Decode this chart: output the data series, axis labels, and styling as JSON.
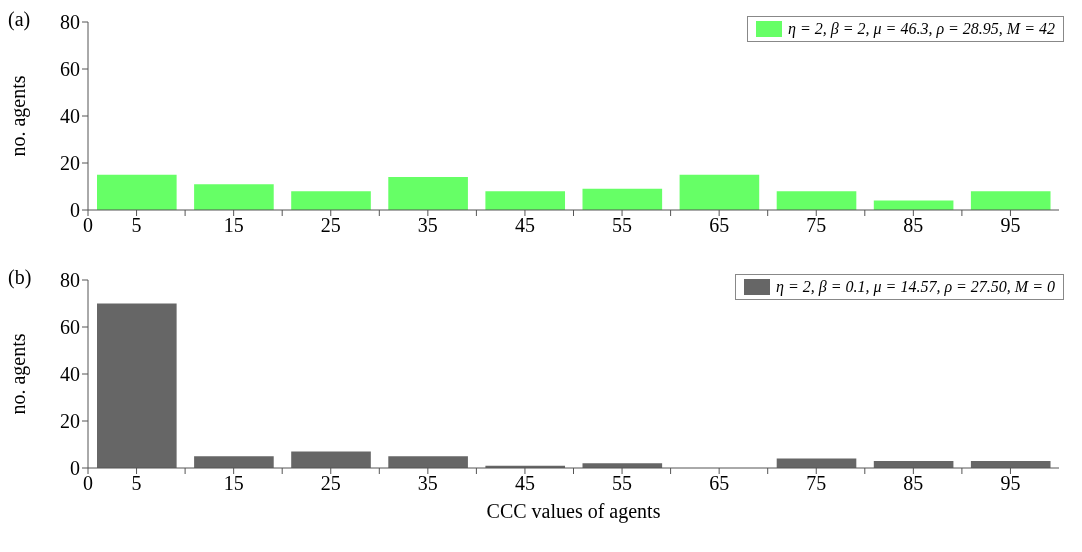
{
  "chart_data": [
    {
      "type": "histogram",
      "title": "(a)",
      "ylabel": "no. agents",
      "bins": [
        0,
        10,
        20,
        30,
        40,
        50,
        60,
        70,
        80,
        90,
        100
      ],
      "series": [
        {
          "name": "η = 2, β = 2, μ = 46.3, ρ = 28.95, M = 42",
          "color": "#66ff66",
          "values": [
            15,
            11,
            8,
            14,
            8,
            9,
            15,
            8,
            4,
            8
          ]
        }
      ],
      "xlim": [
        0,
        100
      ],
      "xticks": [
        0,
        5,
        {
          "value": 10,
          "label": null
        },
        15,
        {
          "value": 20,
          "label": null
        },
        25,
        {
          "value": 30,
          "label": null
        },
        35,
        {
          "value": 40,
          "label": null
        },
        45,
        {
          "value": 50,
          "label": null
        },
        55,
        {
          "value": 60,
          "label": null
        },
        65,
        {
          "value": 70,
          "label": null
        },
        75,
        {
          "value": 80,
          "label": null
        },
        85,
        {
          "value": 90,
          "label": null
        },
        95
      ],
      "ylim": [
        0,
        80
      ],
      "yticks": [
        0,
        20,
        40,
        60,
        80
      ],
      "legend": "top right"
    },
    {
      "type": "histogram",
      "title": "(b)",
      "xlabel": "CCC values of agents",
      "ylabel": "no. agents",
      "bins": [
        0,
        10,
        20,
        30,
        40,
        50,
        60,
        70,
        80,
        90,
        100
      ],
      "series": [
        {
          "name": "η = 2, β = 0.1, μ = 14.57, ρ = 27.50, M = 0",
          "color": "#666666",
          "values": [
            70,
            5,
            7,
            5,
            1,
            2,
            0,
            4,
            3,
            3
          ]
        }
      ],
      "xlim": [
        0,
        100
      ],
      "xticks": [
        0,
        5,
        {
          "value": 10,
          "label": null
        },
        15,
        {
          "value": 20,
          "label": null
        },
        25,
        {
          "value": 30,
          "label": null
        },
        35,
        {
          "value": 40,
          "label": null
        },
        45,
        {
          "value": 50,
          "label": null
        },
        55,
        {
          "value": 60,
          "label": null
        },
        65,
        {
          "value": 70,
          "label": null
        },
        75,
        {
          "value": 80,
          "label": null
        },
        85,
        {
          "value": 90,
          "label": null
        },
        95
      ],
      "ylim": [
        0,
        80
      ],
      "yticks": [
        0,
        20,
        40,
        60,
        80
      ],
      "legend": "top right"
    }
  ]
}
